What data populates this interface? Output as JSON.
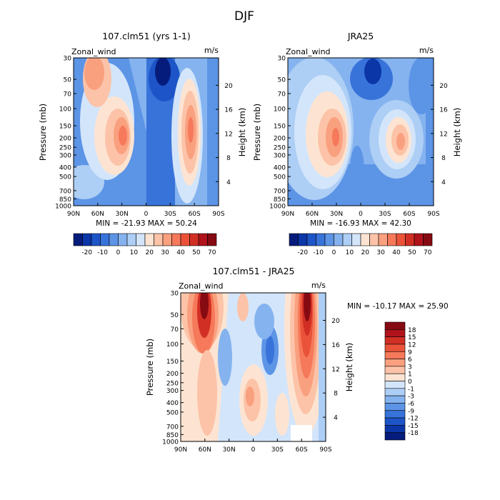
{
  "page_title": "DJF",
  "colors": {
    "warm": [
      "#fde4d2",
      "#fcc3a8",
      "#f9a07f",
      "#f5795a",
      "#ea5339",
      "#d22f24",
      "#b0131b",
      "#860a12"
    ],
    "cool": [
      "#d3e5fa",
      "#adcef5",
      "#85b3ef",
      "#5c94e6",
      "#3873da",
      "#1d55c8",
      "#0b36a8",
      "#061c7c"
    ]
  },
  "panels": [
    {
      "title": "107.clm51 (yrs 1-1)",
      "variable": "Zonal_wind",
      "units": "m/s",
      "ylabel": "Pressure (mb)",
      "ylabel_right": "Height (km)",
      "stats": "MIN = -21.93   MAX = 50.24"
    },
    {
      "title": "JRA25",
      "variable": "Zonal_wind",
      "units": "m/s",
      "ylabel": "Pressure (mb)",
      "ylabel_right": "Height (km)",
      "stats": "MIN = -16.93   MAX = 42.30"
    },
    {
      "title": "107.clm51 - JRA25",
      "variable": "Zonal_wind",
      "units": "m/s",
      "ylabel": "Pressure (mb)",
      "ylabel_right": "Height (km)",
      "stats": "MIN = -10.17   MAX =   25.90"
    }
  ],
  "colorbar_main": {
    "labels": [
      "-20",
      "-10",
      "0",
      "10",
      "20",
      "30",
      "40",
      "50",
      "70"
    ]
  },
  "colorbar_diff": {
    "labels": [
      "18",
      "15",
      "12",
      "9",
      "6",
      "3",
      "1",
      "0",
      "-1",
      "-3",
      "-6",
      "-9",
      "-12",
      "-15",
      "-18"
    ]
  },
  "chart_data": [
    {
      "type": "heatmap",
      "title": "107.clm51 (yrs 1-1)",
      "variable": "Zonal_wind",
      "units": "m/s",
      "x_ticks": [
        "90N",
        "60N",
        "30N",
        "0",
        "30S",
        "60S",
        "90S"
      ],
      "y_ticks": [
        "30",
        "50",
        "70",
        "100",
        "150",
        "200",
        "250",
        "300",
        "400",
        "500",
        "700",
        "850",
        "1000"
      ],
      "y_scale": "log pressure",
      "y_right_ticks": [
        "4",
        "8",
        "12",
        "16",
        "20"
      ],
      "xlabel": "",
      "ylabel": "Pressure (mb)",
      "ylabel_right": "Height (km)",
      "min": -21.93,
      "max": 50.24,
      "features": [
        {
          "kind": "westerly jet",
          "lat": 30,
          "pressure_mb": 200,
          "value": 44
        },
        {
          "kind": "westerly jet",
          "lat": -50,
          "pressure_mb": 200,
          "value": 50
        },
        {
          "kind": "polar-night jet",
          "lat": 60,
          "pressure_mb": 30,
          "value": 35
        },
        {
          "kind": "easterlies",
          "lat": -10,
          "pressure_mb": 50,
          "value": -22
        }
      ]
    },
    {
      "type": "heatmap",
      "title": "JRA25",
      "variable": "Zonal_wind",
      "units": "m/s",
      "x_ticks": [
        "90N",
        "60N",
        "30N",
        "0",
        "30S",
        "60S",
        "90S"
      ],
      "y_ticks": [
        "30",
        "50",
        "70",
        "100",
        "150",
        "200",
        "250",
        "300",
        "400",
        "500",
        "700",
        "850",
        "1000"
      ],
      "y_scale": "log pressure",
      "y_right_ticks": [
        "4",
        "8",
        "12",
        "16",
        "20"
      ],
      "xlabel": "",
      "ylabel": "Pressure (mb)",
      "ylabel_right": "Height (km)",
      "min": -16.93,
      "max": 42.3,
      "features": [
        {
          "kind": "westerly jet",
          "lat": 30,
          "pressure_mb": 200,
          "value": 42
        },
        {
          "kind": "westerly jet",
          "lat": -45,
          "pressure_mb": 200,
          "value": 38
        },
        {
          "kind": "easterlies",
          "lat": -10,
          "pressure_mb": 40,
          "value": -17
        }
      ]
    },
    {
      "type": "heatmap",
      "title": "107.clm51 - JRA25",
      "variable": "Zonal_wind",
      "units": "m/s",
      "x_ticks": [
        "90N",
        "60N",
        "30N",
        "0",
        "30S",
        "60S",
        "90S"
      ],
      "y_ticks": [
        "30",
        "50",
        "70",
        "100",
        "150",
        "200",
        "250",
        "300",
        "400",
        "500",
        "700",
        "850",
        "1000"
      ],
      "y_scale": "log pressure",
      "y_right_ticks": [
        "4",
        "8",
        "12",
        "16",
        "20"
      ],
      "xlabel": "",
      "ylabel": "Pressure (mb)",
      "ylabel_right": "Height (km)",
      "min": -10.17,
      "max": 25.9,
      "features": [
        {
          "kind": "positive difference",
          "lat": 65,
          "pressure_mb": 40,
          "value": 20
        },
        {
          "kind": "positive difference",
          "lat": -60,
          "pressure_mb": 40,
          "value": 25.9
        },
        {
          "kind": "positive difference",
          "lat": 0,
          "pressure_mb": 400,
          "value": 6
        },
        {
          "kind": "negative difference",
          "lat": -20,
          "pressure_mb": 100,
          "value": -9
        }
      ]
    }
  ]
}
